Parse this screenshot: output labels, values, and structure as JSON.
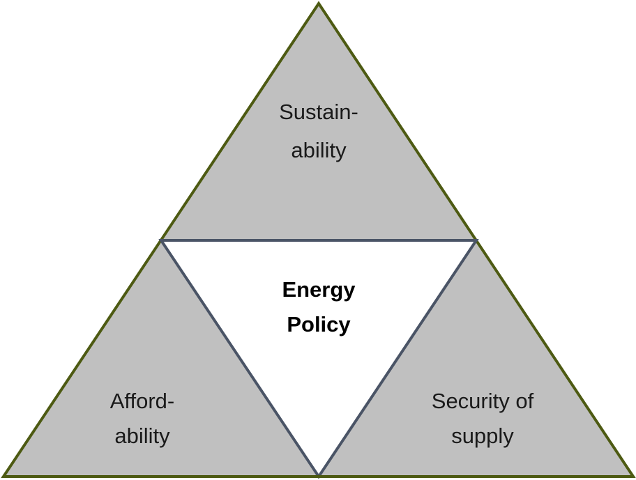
{
  "nodes": [
    {
      "lines": [
        "Sustain-",
        "ability"
      ]
    },
    {
      "lines": [
        "Energy",
        "Policy"
      ]
    },
    {
      "lines": [
        "Afford-",
        "ability"
      ]
    },
    {
      "lines": [
        "Security of",
        "supply"
      ]
    }
  ]
}
